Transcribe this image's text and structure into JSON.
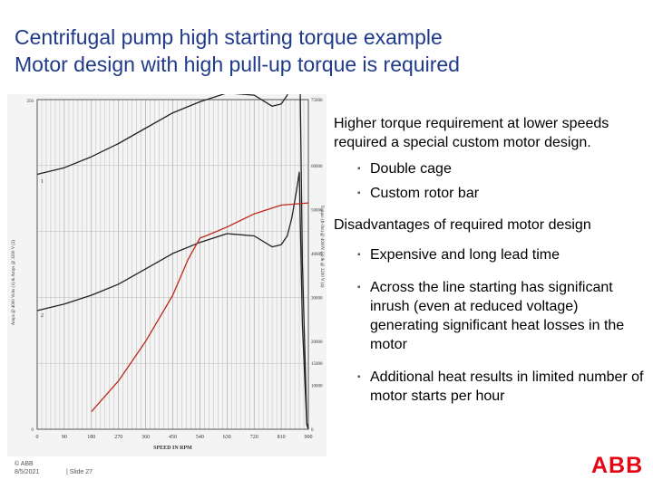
{
  "title": {
    "line1": "Centrifugal pump high starting torque example",
    "line2": "Motor design with high pull-up torque is required"
  },
  "content": {
    "paragraph1": "Higher torque requirement at lower speeds required a special custom motor design.",
    "bullets1": [
      "Double cage",
      "Custom rotor bar"
    ],
    "paragraph2": "Disadvantages of required motor design",
    "bullets2": [
      "Expensive and long lead time",
      "Across the line starting has significant inrush (even at reduced voltage) generating significant heat losses in the motor",
      "Additional heat results in limited number of motor starts per hour"
    ],
    "bullet_glyph": "▪"
  },
  "chart_data": {
    "type": "line",
    "xlabel": "SPEED IN RPM",
    "ylabel_left": "Amps @ 4000 Volts (1) & Amps @ 3200 V (2)",
    "ylabel_right": "Torque (ft-lbs) @ 4000V (3) & @ 3200 V (4)",
    "x_ticks": [
      "0",
      "90",
      "180",
      "270",
      "360",
      "450",
      "540",
      "630",
      "720",
      "810",
      "900"
    ],
    "xlim": [
      0,
      900
    ],
    "left_ticks": [
      "250",
      "0"
    ],
    "right_ticks": [
      "75000",
      "60000",
      "50000",
      "40000",
      "30000",
      "20000",
      "15000",
      "10000",
      "0"
    ],
    "curve_labels": [
      "1",
      "2"
    ],
    "grid": true,
    "series": [
      {
        "color": "#222222",
        "x": [
          0,
          90,
          180,
          270,
          360,
          450,
          540,
          630,
          720,
          780,
          810,
          830,
          845,
          860,
          870,
          880,
          895,
          900
        ],
        "y": [
          58000,
          59500,
          62000,
          65000,
          68500,
          72000,
          74500,
          76500,
          76000,
          73500,
          74000,
          76000,
          80000,
          86000,
          94000,
          38000,
          1500,
          0
        ]
      },
      {
        "color": "#222222",
        "x": [
          0,
          90,
          180,
          270,
          360,
          450,
          540,
          630,
          720,
          780,
          810,
          830,
          845,
          860,
          870,
          880,
          895,
          900
        ],
        "y": [
          27000,
          28500,
          30500,
          33000,
          36500,
          40000,
          42500,
          44500,
          44000,
          41500,
          42000,
          44000,
          48000,
          54000,
          58500,
          24000,
          1000,
          0
        ]
      },
      {
        "color": "#c0281c",
        "x": [
          180,
          270,
          360,
          450,
          500,
          540,
          560,
          630,
          720,
          810,
          900
        ],
        "y": [
          4000,
          11000,
          20000,
          30500,
          38500,
          43500,
          44000,
          46000,
          49000,
          51000,
          51500
        ]
      }
    ]
  },
  "footer": {
    "copyright": "© ABB",
    "date": "8/5/2021",
    "slide": "| Slide 27"
  },
  "logo": {
    "text": "ABB",
    "color": "#e30613"
  }
}
